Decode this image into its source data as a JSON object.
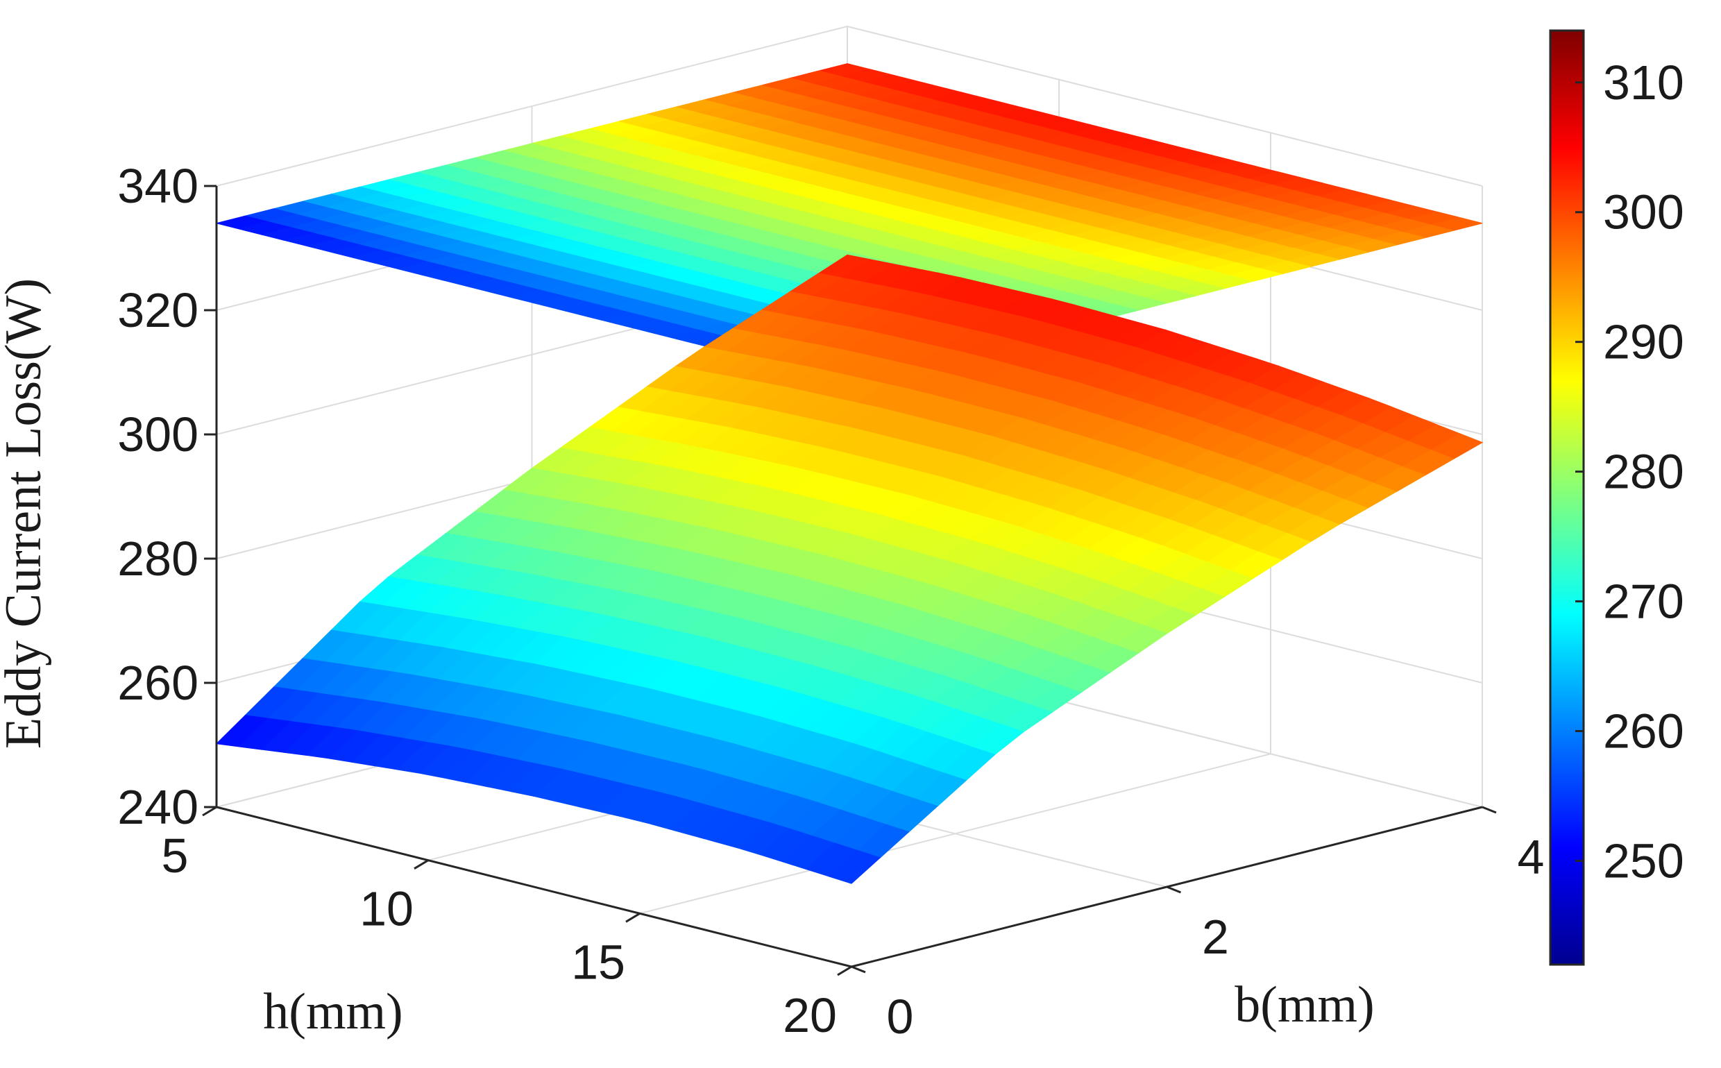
{
  "chart_data": {
    "type": "surface",
    "title": "",
    "xlabel": "h(mm)",
    "ylabel": "b(mm)",
    "zlabel": "Eddy Current Loss(W)",
    "x_ticks": [
      5,
      10,
      15,
      20
    ],
    "y_ticks": [
      0,
      2,
      4
    ],
    "z_ticks": [
      240,
      260,
      280,
      300,
      320,
      340
    ],
    "xlim": [
      5,
      20
    ],
    "ylim": [
      0,
      4
    ],
    "zlim": [
      240,
      340
    ],
    "grid": true,
    "colormap": "jet",
    "colorbar": {
      "ticks": [
        250,
        260,
        270,
        280,
        290,
        300,
        310
      ],
      "range": [
        242,
        314
      ],
      "placement": "right"
    },
    "surface": {
      "description_model": "loss(h,b) = 250.2 + 53*(b/4)^0.75 + 15*((h-5)/15) - 14*((h-5)/15)^2 - 4*(b/4)*((h-5)/15)",
      "h_samples": [
        5,
        7.5,
        10,
        12.5,
        15,
        17.5,
        20
      ],
      "b_samples": [
        0,
        1,
        2,
        3,
        4
      ],
      "loss_grid": [
        [
          250.2,
          268.9,
          281.7,
          293.3,
          303.2
        ],
        [
          252.3,
          270.4,
          283.0,
          294.4,
          304.1
        ],
        [
          253.8,
          271.5,
          283.8,
          294.9,
          304.4
        ],
        [
          254.6,
          272.0,
          284.0,
          294.8,
          304.0
        ],
        [
          254.9,
          271.9,
          283.6,
          294.0,
          302.9
        ],
        [
          254.5,
          271.2,
          282.5,
          292.6,
          301.1
        ],
        [
          253.4,
          269.8,
          280.8,
          290.6,
          298.7
        ]
      ]
    },
    "projection_plane": {
      "z": 334,
      "note_colors": "same colormap as surface, projected on top plane"
    }
  }
}
